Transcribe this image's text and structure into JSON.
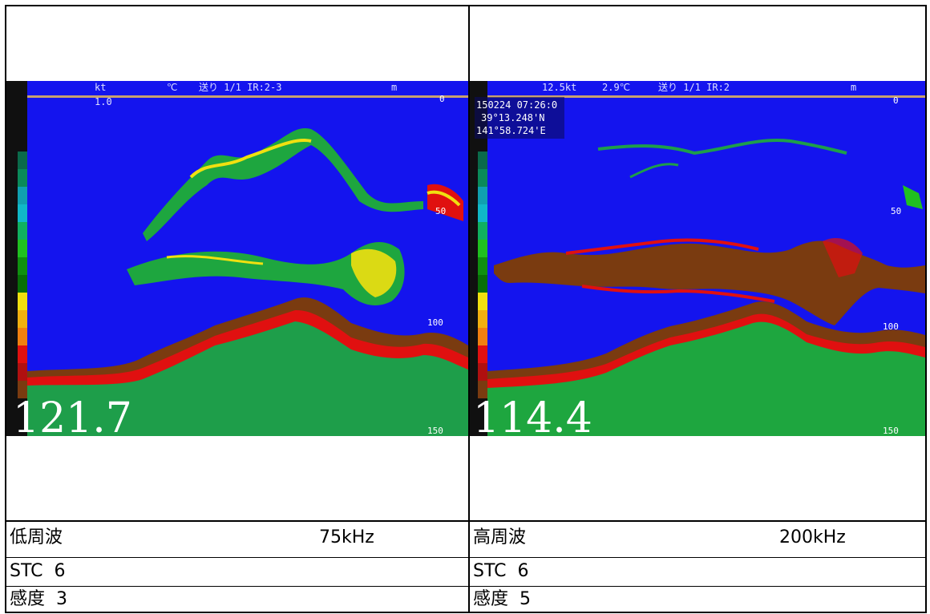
{
  "colors": {
    "water": "#1414ee",
    "strong_echo": "#7a3b10",
    "red_echo": "#e01010",
    "yellow_echo": "#f0e010",
    "green_echo": "#20c020",
    "header_line": "#c8a070"
  },
  "left": {
    "header": {
      "speed": "kt",
      "temp": "℃",
      "mode": "送り 1/1 IR:2-3",
      "unit": "m",
      "sub": "1.0"
    },
    "depth_ticks": [
      "0",
      "50",
      "100",
      "150"
    ],
    "depth_reading": "121.7",
    "freq_label": "低周波",
    "freq_value": "75kHz",
    "stc": "STC  6",
    "gain": "感度  3"
  },
  "right": {
    "header": {
      "speed": "12.5kt",
      "temp": "2.9℃",
      "mode": "送り 1/1 IR:2",
      "unit": "m"
    },
    "gps": {
      "datetime": "150224 07:26:0",
      "lat": "39°13.248'N",
      "lon": "141°58.724'E"
    },
    "depth_ticks": [
      "0",
      "50",
      "100",
      "150"
    ],
    "depth_reading": "114.4",
    "freq_label": "高周波",
    "freq_value": "200kHz",
    "stc": "STC  6",
    "gain": "感度  5"
  }
}
